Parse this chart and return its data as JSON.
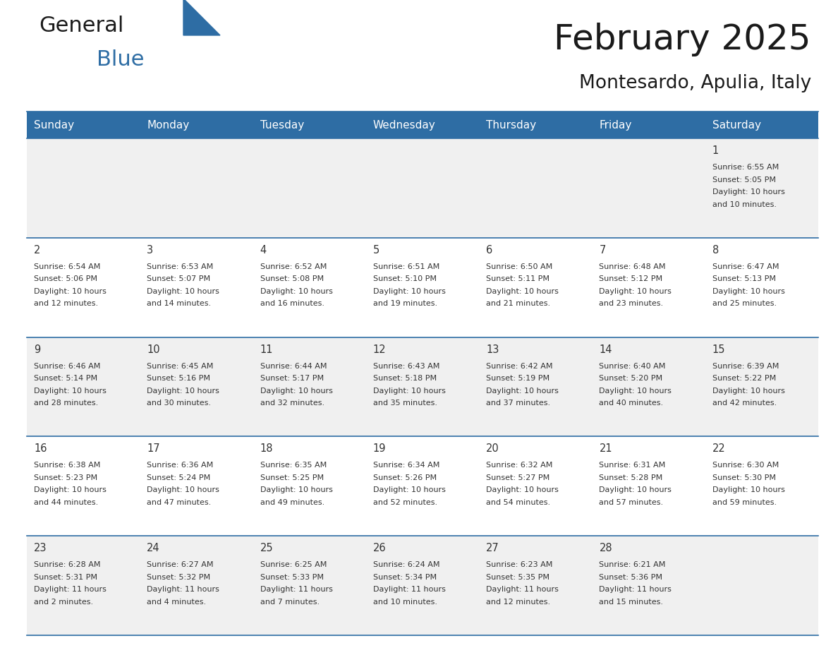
{
  "title": "February 2025",
  "subtitle": "Montesardo, Apulia, Italy",
  "header_bg": "#2E6DA4",
  "header_text": "#FFFFFF",
  "cell_bg_light": "#F0F0F0",
  "cell_bg_white": "#FFFFFF",
  "text_color": "#333333",
  "separator_color": "#2E6DA4",
  "day_names": [
    "Sunday",
    "Monday",
    "Tuesday",
    "Wednesday",
    "Thursday",
    "Friday",
    "Saturday"
  ],
  "weeks": [
    [
      null,
      null,
      null,
      null,
      null,
      null,
      {
        "day": 1,
        "rise": "6:55 AM",
        "set": "5:05 PM",
        "daylight": "10 hours and 10 minutes."
      }
    ],
    [
      {
        "day": 2,
        "rise": "6:54 AM",
        "set": "5:06 PM",
        "daylight": "10 hours and 12 minutes."
      },
      {
        "day": 3,
        "rise": "6:53 AM",
        "set": "5:07 PM",
        "daylight": "10 hours and 14 minutes."
      },
      {
        "day": 4,
        "rise": "6:52 AM",
        "set": "5:08 PM",
        "daylight": "10 hours and 16 minutes."
      },
      {
        "day": 5,
        "rise": "6:51 AM",
        "set": "5:10 PM",
        "daylight": "10 hours and 19 minutes."
      },
      {
        "day": 6,
        "rise": "6:50 AM",
        "set": "5:11 PM",
        "daylight": "10 hours and 21 minutes."
      },
      {
        "day": 7,
        "rise": "6:48 AM",
        "set": "5:12 PM",
        "daylight": "10 hours and 23 minutes."
      },
      {
        "day": 8,
        "rise": "6:47 AM",
        "set": "5:13 PM",
        "daylight": "10 hours and 25 minutes."
      }
    ],
    [
      {
        "day": 9,
        "rise": "6:46 AM",
        "set": "5:14 PM",
        "daylight": "10 hours and 28 minutes."
      },
      {
        "day": 10,
        "rise": "6:45 AM",
        "set": "5:16 PM",
        "daylight": "10 hours and 30 minutes."
      },
      {
        "day": 11,
        "rise": "6:44 AM",
        "set": "5:17 PM",
        "daylight": "10 hours and 32 minutes."
      },
      {
        "day": 12,
        "rise": "6:43 AM",
        "set": "5:18 PM",
        "daylight": "10 hours and 35 minutes."
      },
      {
        "day": 13,
        "rise": "6:42 AM",
        "set": "5:19 PM",
        "daylight": "10 hours and 37 minutes."
      },
      {
        "day": 14,
        "rise": "6:40 AM",
        "set": "5:20 PM",
        "daylight": "10 hours and 40 minutes."
      },
      {
        "day": 15,
        "rise": "6:39 AM",
        "set": "5:22 PM",
        "daylight": "10 hours and 42 minutes."
      }
    ],
    [
      {
        "day": 16,
        "rise": "6:38 AM",
        "set": "5:23 PM",
        "daylight": "10 hours and 44 minutes."
      },
      {
        "day": 17,
        "rise": "6:36 AM",
        "set": "5:24 PM",
        "daylight": "10 hours and 47 minutes."
      },
      {
        "day": 18,
        "rise": "6:35 AM",
        "set": "5:25 PM",
        "daylight": "10 hours and 49 minutes."
      },
      {
        "day": 19,
        "rise": "6:34 AM",
        "set": "5:26 PM",
        "daylight": "10 hours and 52 minutes."
      },
      {
        "day": 20,
        "rise": "6:32 AM",
        "set": "5:27 PM",
        "daylight": "10 hours and 54 minutes."
      },
      {
        "day": 21,
        "rise": "6:31 AM",
        "set": "5:28 PM",
        "daylight": "10 hours and 57 minutes."
      },
      {
        "day": 22,
        "rise": "6:30 AM",
        "set": "5:30 PM",
        "daylight": "10 hours and 59 minutes."
      }
    ],
    [
      {
        "day": 23,
        "rise": "6:28 AM",
        "set": "5:31 PM",
        "daylight": "11 hours and 2 minutes."
      },
      {
        "day": 24,
        "rise": "6:27 AM",
        "set": "5:32 PM",
        "daylight": "11 hours and 4 minutes."
      },
      {
        "day": 25,
        "rise": "6:25 AM",
        "set": "5:33 PM",
        "daylight": "11 hours and 7 minutes."
      },
      {
        "day": 26,
        "rise": "6:24 AM",
        "set": "5:34 PM",
        "daylight": "11 hours and 10 minutes."
      },
      {
        "day": 27,
        "rise": "6:23 AM",
        "set": "5:35 PM",
        "daylight": "11 hours and 12 minutes."
      },
      {
        "day": 28,
        "rise": "6:21 AM",
        "set": "5:36 PM",
        "daylight": "11 hours and 15 minutes."
      },
      null
    ]
  ],
  "logo_general_color": "#1a1a1a",
  "logo_blue_color": "#2E6DA4",
  "logo_triangle_color": "#2E6DA4"
}
